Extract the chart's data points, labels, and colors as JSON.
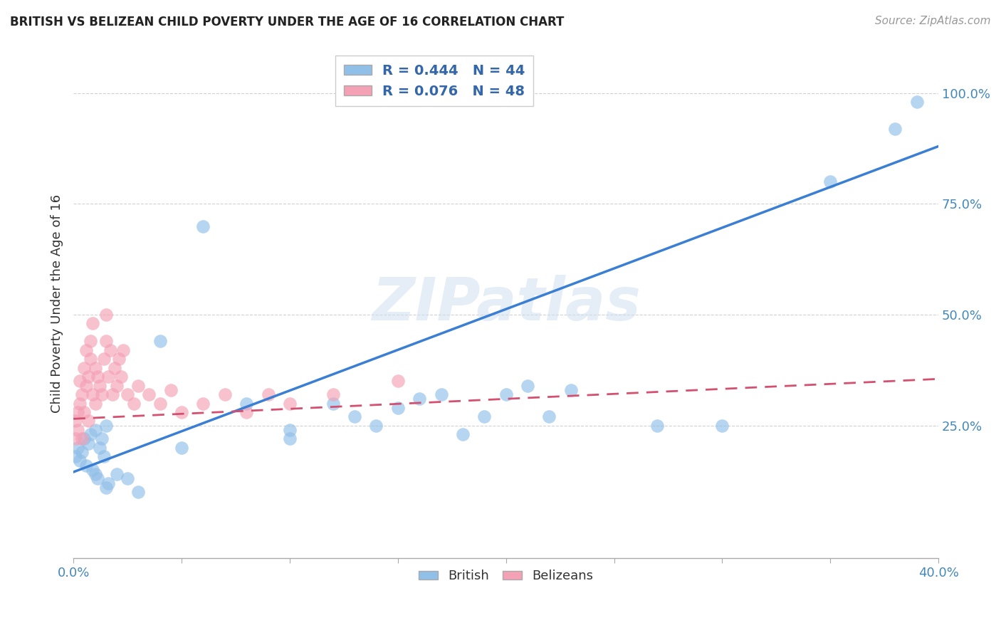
{
  "title": "BRITISH VS BELIZEAN CHILD POVERTY UNDER THE AGE OF 16 CORRELATION CHART",
  "source": "Source: ZipAtlas.com",
  "ylabel": "Child Poverty Under the Age of 16",
  "xlim": [
    0.0,
    0.4
  ],
  "ylim": [
    -0.05,
    1.1
  ],
  "british_R": 0.444,
  "british_N": 44,
  "belizean_R": 0.076,
  "belizean_N": 48,
  "british_color": "#90bfe8",
  "belizean_color": "#f4a0b5",
  "british_line_color": "#3a7fd4",
  "belizean_line_color": "#d45070",
  "watermark": "ZIPatlas",
  "british_x": [
    0.001,
    0.002,
    0.003,
    0.004,
    0.005,
    0.006,
    0.007,
    0.008,
    0.009,
    0.01,
    0.01,
    0.011,
    0.012,
    0.013,
    0.014,
    0.015,
    0.015,
    0.016,
    0.02,
    0.025,
    0.03,
    0.04,
    0.05,
    0.06,
    0.08,
    0.1,
    0.1,
    0.12,
    0.13,
    0.14,
    0.15,
    0.16,
    0.17,
    0.18,
    0.19,
    0.2,
    0.21,
    0.22,
    0.23,
    0.27,
    0.3,
    0.35,
    0.38,
    0.39
  ],
  "british_y": [
    0.18,
    0.2,
    0.17,
    0.19,
    0.22,
    0.16,
    0.21,
    0.23,
    0.15,
    0.14,
    0.24,
    0.13,
    0.2,
    0.22,
    0.18,
    0.11,
    0.25,
    0.12,
    0.14,
    0.13,
    0.1,
    0.44,
    0.2,
    0.7,
    0.3,
    0.22,
    0.24,
    0.3,
    0.27,
    0.25,
    0.29,
    0.31,
    0.32,
    0.23,
    0.27,
    0.32,
    0.34,
    0.27,
    0.33,
    0.25,
    0.25,
    0.8,
    0.92,
    0.98
  ],
  "belizean_x": [
    0.001,
    0.001,
    0.002,
    0.002,
    0.003,
    0.003,
    0.004,
    0.004,
    0.005,
    0.005,
    0.006,
    0.006,
    0.007,
    0.007,
    0.008,
    0.008,
    0.009,
    0.009,
    0.01,
    0.01,
    0.011,
    0.012,
    0.013,
    0.014,
    0.015,
    0.015,
    0.016,
    0.017,
    0.018,
    0.019,
    0.02,
    0.021,
    0.022,
    0.023,
    0.025,
    0.028,
    0.03,
    0.035,
    0.04,
    0.045,
    0.05,
    0.06,
    0.07,
    0.08,
    0.09,
    0.1,
    0.12,
    0.15
  ],
  "belizean_y": [
    0.22,
    0.26,
    0.24,
    0.28,
    0.3,
    0.35,
    0.22,
    0.32,
    0.38,
    0.28,
    0.34,
    0.42,
    0.26,
    0.36,
    0.4,
    0.44,
    0.32,
    0.48,
    0.3,
    0.38,
    0.36,
    0.34,
    0.32,
    0.4,
    0.44,
    0.5,
    0.36,
    0.42,
    0.32,
    0.38,
    0.34,
    0.4,
    0.36,
    0.42,
    0.32,
    0.3,
    0.34,
    0.32,
    0.3,
    0.33,
    0.28,
    0.3,
    0.32,
    0.28,
    0.32,
    0.3,
    0.32,
    0.35
  ],
  "brit_line_x0": 0.0,
  "brit_line_y0": 0.145,
  "brit_line_x1": 0.4,
  "brit_line_y1": 0.88,
  "beli_line_x0": 0.0,
  "beli_line_y0": 0.265,
  "beli_line_x1": 0.4,
  "beli_line_y1": 0.355
}
